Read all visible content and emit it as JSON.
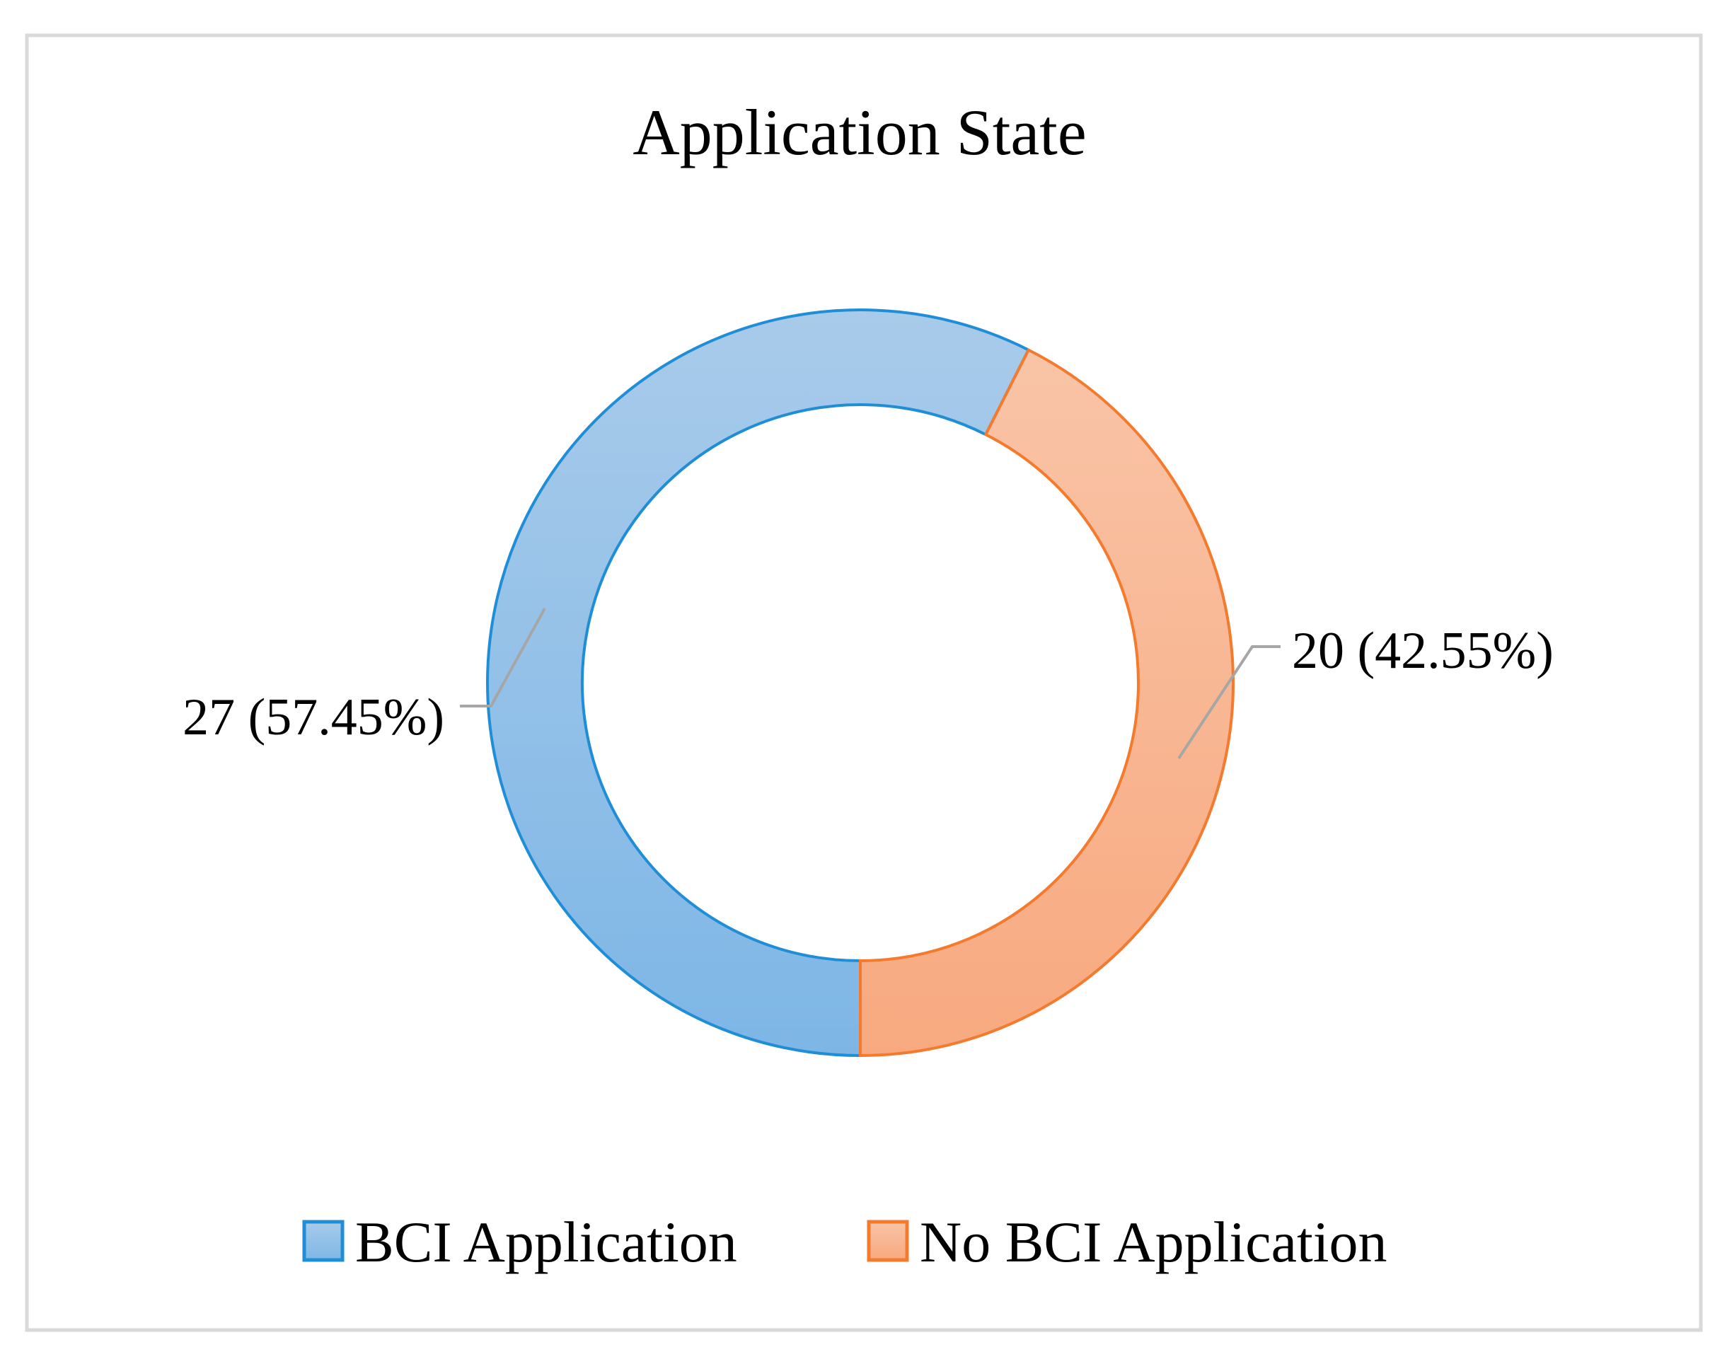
{
  "chart_data": {
    "type": "pie",
    "variant": "donut",
    "title": "Application State",
    "categories": [
      "BCI Application",
      "No BCI Application"
    ],
    "values": [
      27,
      20
    ],
    "percent_labels": [
      "57.45%",
      "42.55%"
    ],
    "data_labels": [
      "27 (57.45%)",
      "20 (42.55%)"
    ],
    "colors": {
      "BCI Application": {
        "fill_top": "#a9cbea",
        "fill_bottom": "#7db6e6",
        "stroke": "#1f8ed6"
      },
      "No BCI Application": {
        "fill_top": "#f9c4a7",
        "fill_bottom": "#f8a97f",
        "stroke": "#f47a2e"
      }
    },
    "legend_placement": "bottom",
    "leader_line_color": "#a6a6a6",
    "frame_color": "#d9d9d9"
  }
}
